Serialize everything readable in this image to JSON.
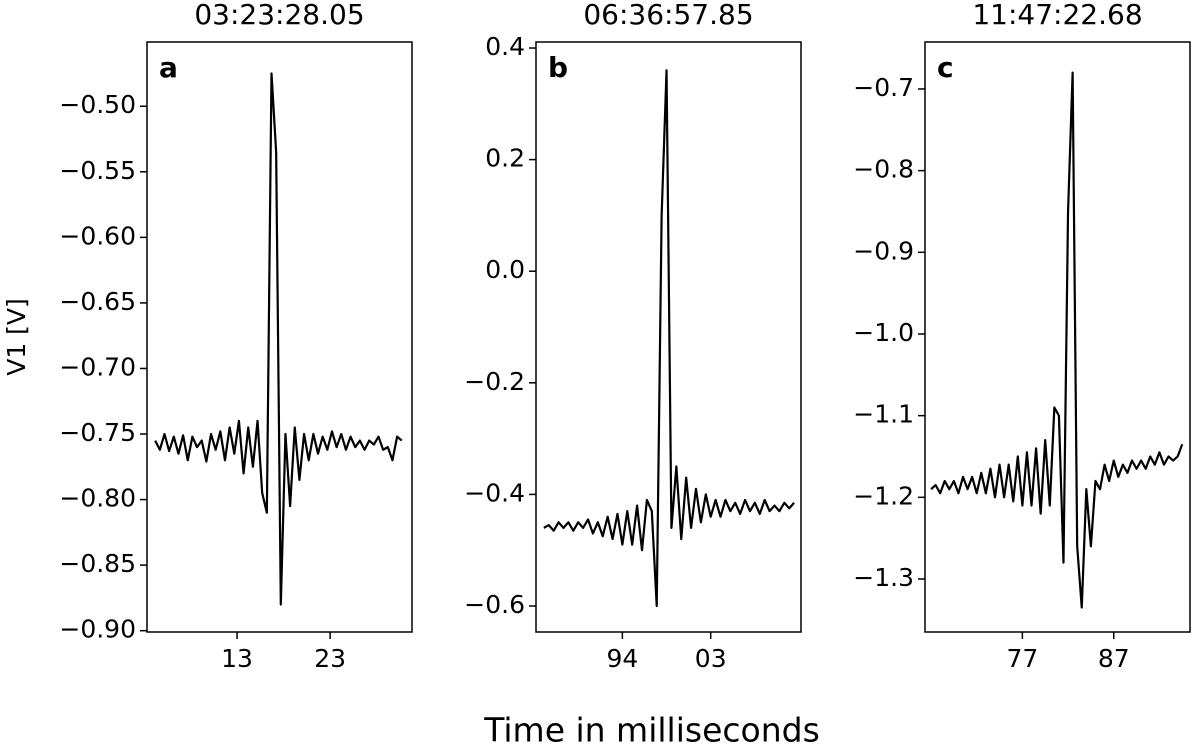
{
  "xlabel": "Time in milliseconds",
  "chart_data": [
    {
      "type": "line",
      "title": "03:23:28.05",
      "ylabel": "V1 [V]",
      "panel_label": "a",
      "color": "#000000",
      "xlim": [
        3.32,
        31.8
      ],
      "ylim": [
        -0.901,
        -0.451
      ],
      "xticks": [
        13,
        23
      ],
      "yticks": [
        {
          "value": -0.5,
          "label": "−0.50"
        },
        {
          "value": -0.55,
          "label": "−0.55"
        },
        {
          "value": -0.6,
          "label": "−0.60"
        },
        {
          "value": -0.65,
          "label": "−0.65"
        },
        {
          "value": -0.7,
          "label": "−0.70"
        },
        {
          "value": -0.75,
          "label": "−0.75"
        },
        {
          "value": -0.8,
          "label": "−0.80"
        },
        {
          "value": -0.85,
          "label": "−0.85"
        },
        {
          "value": -0.9,
          "label": "−0.90"
        }
      ],
      "x": [
        4.2,
        4.7,
        5.2,
        5.7,
        6.2,
        6.7,
        7.2,
        7.7,
        8.2,
        8.7,
        9.2,
        9.7,
        10.2,
        10.7,
        11.2,
        11.7,
        12.2,
        12.7,
        13.2,
        13.7,
        14.2,
        14.7,
        15.2,
        15.7,
        16.2,
        16.7,
        17.2,
        17.7,
        18.2,
        18.7,
        19.2,
        19.7,
        20.2,
        20.7,
        21.2,
        21.7,
        22.2,
        22.7,
        23.2,
        23.7,
        24.2,
        24.7,
        25.2,
        25.7,
        26.2,
        26.7,
        27.2,
        27.7,
        28.2,
        28.7,
        29.2,
        29.7,
        30.2,
        30.7
      ],
      "values": [
        -0.755,
        -0.762,
        -0.75,
        -0.763,
        -0.752,
        -0.765,
        -0.751,
        -0.77,
        -0.752,
        -0.76,
        -0.755,
        -0.771,
        -0.75,
        -0.762,
        -0.748,
        -0.77,
        -0.745,
        -0.765,
        -0.74,
        -0.78,
        -0.745,
        -0.775,
        -0.74,
        -0.795,
        -0.81,
        -0.475,
        -0.535,
        -0.88,
        -0.75,
        -0.805,
        -0.745,
        -0.785,
        -0.75,
        -0.77,
        -0.75,
        -0.765,
        -0.752,
        -0.762,
        -0.748,
        -0.76,
        -0.75,
        -0.762,
        -0.752,
        -0.76,
        -0.755,
        -0.762,
        -0.755,
        -0.758,
        -0.752,
        -0.762,
        -0.76,
        -0.77,
        -0.752,
        -0.755
      ]
    },
    {
      "type": "line",
      "title": "06:36:57.85",
      "panel_label": "b",
      "color": "#000000",
      "xlim": [
        85.2,
        112.2
      ],
      "ylim": [
        -0.6466,
        0.4108
      ],
      "xticks": [
        94,
        {
          "value": 103,
          "label": "03"
        }
      ],
      "yticks": [
        {
          "value": -0.6,
          "label": "−0.6"
        },
        {
          "value": -0.4,
          "label": "−0.4"
        },
        {
          "value": -0.2,
          "label": "−0.2"
        },
        {
          "value": 0,
          "label": "0.0"
        },
        0.2,
        0.4
      ],
      "x": [
        86,
        86.5,
        87,
        87.5,
        88,
        88.5,
        89,
        89.5,
        90,
        90.5,
        91,
        91.5,
        92,
        92.5,
        93,
        93.5,
        94,
        94.5,
        95,
        95.5,
        96,
        96.5,
        97,
        97.5,
        98,
        98.5,
        99,
        99.5,
        100,
        100.5,
        101,
        101.5,
        102,
        102.5,
        103,
        103.5,
        104,
        104.5,
        105,
        105.5,
        106,
        106.5,
        107,
        107.5,
        108,
        108.5,
        109,
        109.5,
        110,
        110.5,
        111,
        111.5
      ],
      "values": [
        -0.46,
        -0.455,
        -0.465,
        -0.45,
        -0.46,
        -0.45,
        -0.465,
        -0.45,
        -0.46,
        -0.445,
        -0.47,
        -0.45,
        -0.475,
        -0.44,
        -0.48,
        -0.435,
        -0.49,
        -0.43,
        -0.49,
        -0.42,
        -0.5,
        -0.41,
        -0.43,
        -0.6,
        0.1,
        0.36,
        -0.46,
        -0.35,
        -0.48,
        -0.37,
        -0.46,
        -0.39,
        -0.45,
        -0.4,
        -0.44,
        -0.41,
        -0.44,
        -0.41,
        -0.43,
        -0.415,
        -0.435,
        -0.41,
        -0.43,
        -0.415,
        -0.435,
        -0.41,
        -0.43,
        -0.42,
        -0.43,
        -0.415,
        -0.425,
        -0.415
      ]
    },
    {
      "type": "line",
      "title": "11:47:22.68",
      "panel_label": "c",
      "color": "#000000",
      "xlim": [
        66.34,
        95.35
      ],
      "ylim": [
        -1.3649,
        -0.6425
      ],
      "xticks": [
        77,
        87
      ],
      "yticks": [
        {
          "value": -1.3,
          "label": "−1.3"
        },
        {
          "value": -1.2,
          "label": "−1.2"
        },
        {
          "value": -1.1,
          "label": "−1.1"
        },
        {
          "value": -1.0,
          "label": "−1.0"
        },
        {
          "value": -0.9,
          "label": "−0.9"
        },
        {
          "value": -0.8,
          "label": "−0.8"
        },
        {
          "value": -0.7,
          "label": "−0.7"
        }
      ],
      "x": [
        67,
        67.5,
        68,
        68.5,
        69,
        69.5,
        70,
        70.5,
        71,
        71.5,
        72,
        72.5,
        73,
        73.5,
        74,
        74.5,
        75,
        75.5,
        76,
        76.5,
        77,
        77.5,
        78,
        78.5,
        79,
        79.5,
        80,
        80.5,
        81,
        81.5,
        82,
        82.5,
        83,
        83.5,
        84,
        84.5,
        85,
        85.5,
        86,
        86.5,
        87,
        87.5,
        88,
        88.5,
        89,
        89.5,
        90,
        90.5,
        91,
        91.5,
        92,
        92.5,
        93,
        93.5,
        94,
        94.5
      ],
      "values": [
        -1.19,
        -1.185,
        -1.195,
        -1.18,
        -1.19,
        -1.18,
        -1.195,
        -1.175,
        -1.19,
        -1.175,
        -1.195,
        -1.17,
        -1.195,
        -1.165,
        -1.2,
        -1.16,
        -1.2,
        -1.16,
        -1.205,
        -1.15,
        -1.21,
        -1.145,
        -1.21,
        -1.14,
        -1.22,
        -1.13,
        -1.21,
        -1.09,
        -1.1,
        -1.28,
        -0.85,
        -0.68,
        -1.26,
        -1.335,
        -1.19,
        -1.26,
        -1.18,
        -1.19,
        -1.16,
        -1.18,
        -1.155,
        -1.175,
        -1.16,
        -1.17,
        -1.155,
        -1.165,
        -1.155,
        -1.165,
        -1.15,
        -1.16,
        -1.145,
        -1.16,
        -1.15,
        -1.155,
        -1.15,
        -1.135
      ]
    }
  ]
}
